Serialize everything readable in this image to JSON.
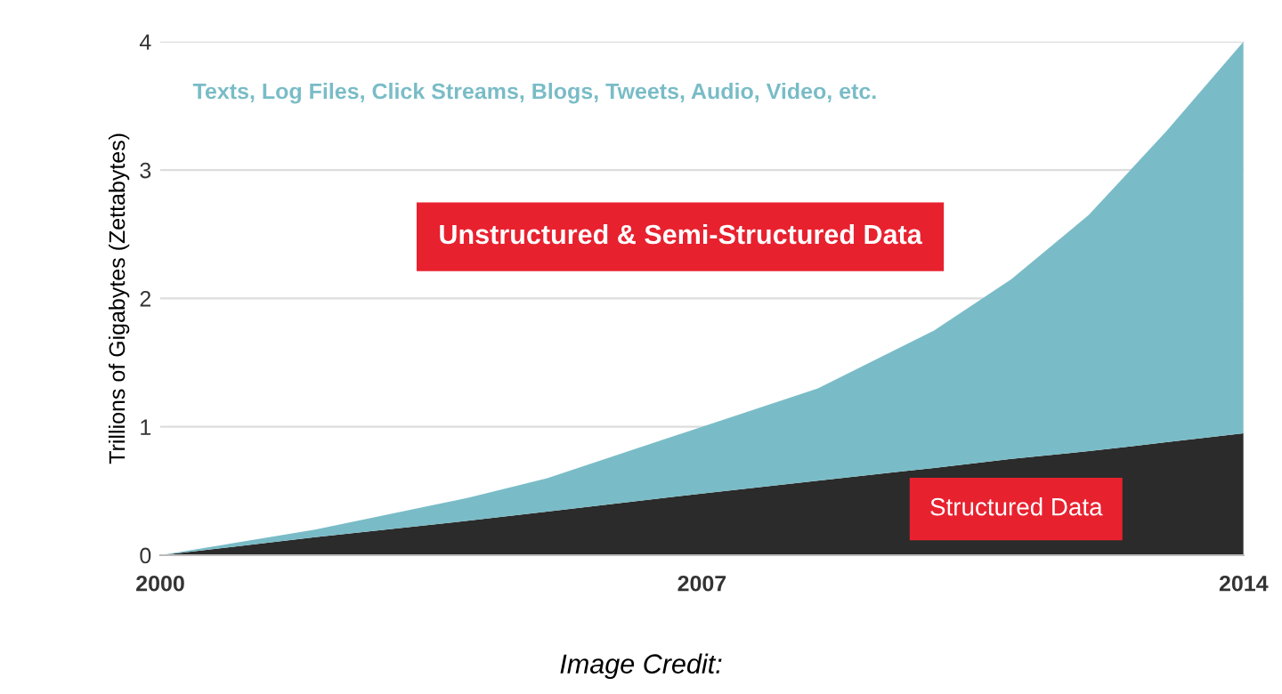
{
  "chart_data": {
    "type": "area",
    "stacked": true,
    "ylabel": "Trillions of Gigabytes (Zettabytes)",
    "x": [
      2000,
      2002,
      2004,
      2005,
      2007,
      2008.5,
      2010,
      2011,
      2012,
      2013,
      2014
    ],
    "series": [
      {
        "name": "Structured Data",
        "color": "#2b2b2b",
        "values": [
          0,
          0.14,
          0.27,
          0.34,
          0.48,
          0.58,
          0.68,
          0.75,
          0.81,
          0.88,
          0.95
        ]
      },
      {
        "name": "Unstructured & Semi-Structured Data",
        "color": "#79bcc7",
        "values": [
          0,
          0.06,
          0.18,
          0.26,
          0.52,
          0.72,
          1.07,
          1.4,
          1.84,
          2.42,
          3.05
        ]
      }
    ],
    "annotations": [
      "Texts, Log Files, Click Streams, Blogs, Tweets, Audio, Video, etc.",
      "Image Credit:"
    ],
    "xlim": [
      2000,
      2014
    ],
    "xticks": [
      2000,
      2007,
      2014
    ],
    "ylim": [
      0,
      4
    ],
    "yticks": [
      0,
      1,
      2,
      3,
      4
    ],
    "grid": "y"
  }
}
